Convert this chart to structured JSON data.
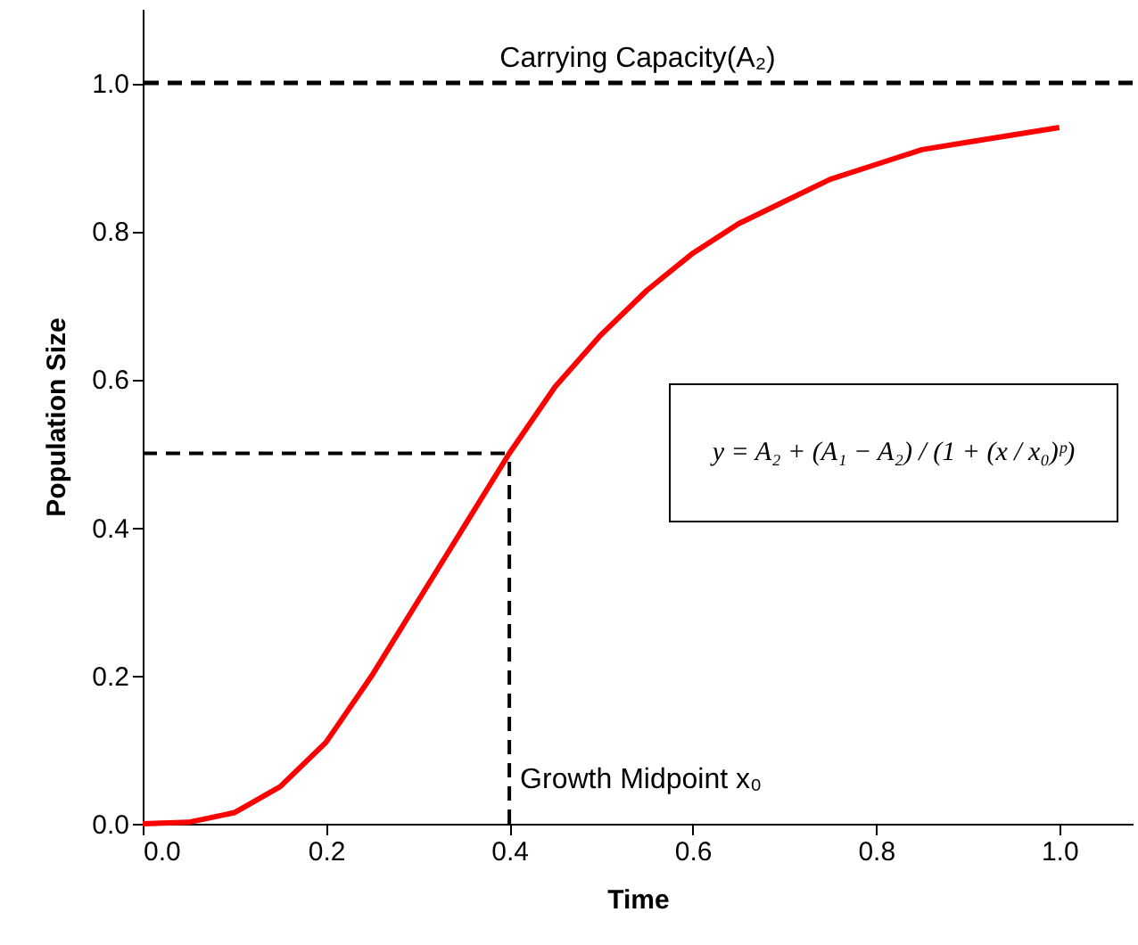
{
  "chart_data": {
    "type": "line",
    "xlabel": "Time",
    "ylabel": "Population Size",
    "xlim": [
      0,
      1.08
    ],
    "ylim": [
      0,
      1.1
    ],
    "xticks": [
      {
        "value": 0,
        "label": "0.0"
      },
      {
        "value": 0.2,
        "label": "0.2"
      },
      {
        "value": 0.4,
        "label": "0.4"
      },
      {
        "value": 0.6,
        "label": "0.6"
      },
      {
        "value": 0.8,
        "label": "0.8"
      },
      {
        "value": 1.0,
        "label": "1.0"
      }
    ],
    "yticks": [
      {
        "value": 0,
        "label": "0.0"
      },
      {
        "value": 0.2,
        "label": "0.2"
      },
      {
        "value": 0.4,
        "label": "0.4"
      },
      {
        "value": 0.6,
        "label": "0.6"
      },
      {
        "value": 0.8,
        "label": "0.8"
      },
      {
        "value": 1.0,
        "label": "1.0"
      }
    ],
    "grid": false,
    "marker": "none",
    "series": [
      {
        "color": "#ff0000",
        "line_style": "solid",
        "x": [
          0,
          0.05,
          0.1,
          0.15,
          0.2,
          0.25,
          0.3,
          0.35,
          0.4,
          0.45,
          0.5,
          0.55,
          0.6,
          0.65,
          0.7,
          0.75,
          0.8,
          0.85,
          0.9,
          0.95,
          1.0
        ],
        "values": [
          0,
          0.002,
          0.015,
          0.05,
          0.11,
          0.2,
          0.3,
          0.4,
          0.5,
          0.59,
          0.66,
          0.72,
          0.77,
          0.81,
          0.84,
          0.87,
          0.89,
          0.91,
          0.92,
          0.93,
          0.94
        ]
      },
      {
        "color": "#000000",
        "line_style": "dashed",
        "x": [
          0,
          0.4
        ],
        "values": [
          0.5,
          0.5
        ]
      },
      {
        "color": "#000000",
        "line_style": "dashed",
        "x": [
          0.4,
          0.4
        ],
        "values": [
          0,
          0.5
        ]
      }
    ],
    "ref_lines": [
      {
        "axis": "y",
        "value": 1.0,
        "label": "Carrying Capacity(A₂)",
        "color": "#000000",
        "line_style": "dashed"
      }
    ],
    "annotations": [
      {
        "text": "Growth Midpoint x₀",
        "x": 0.4,
        "y": 0.05
      },
      "y = A₂ + (A₁ − A₂) / (1 + (x / x₀)ᵖ)"
    ]
  }
}
